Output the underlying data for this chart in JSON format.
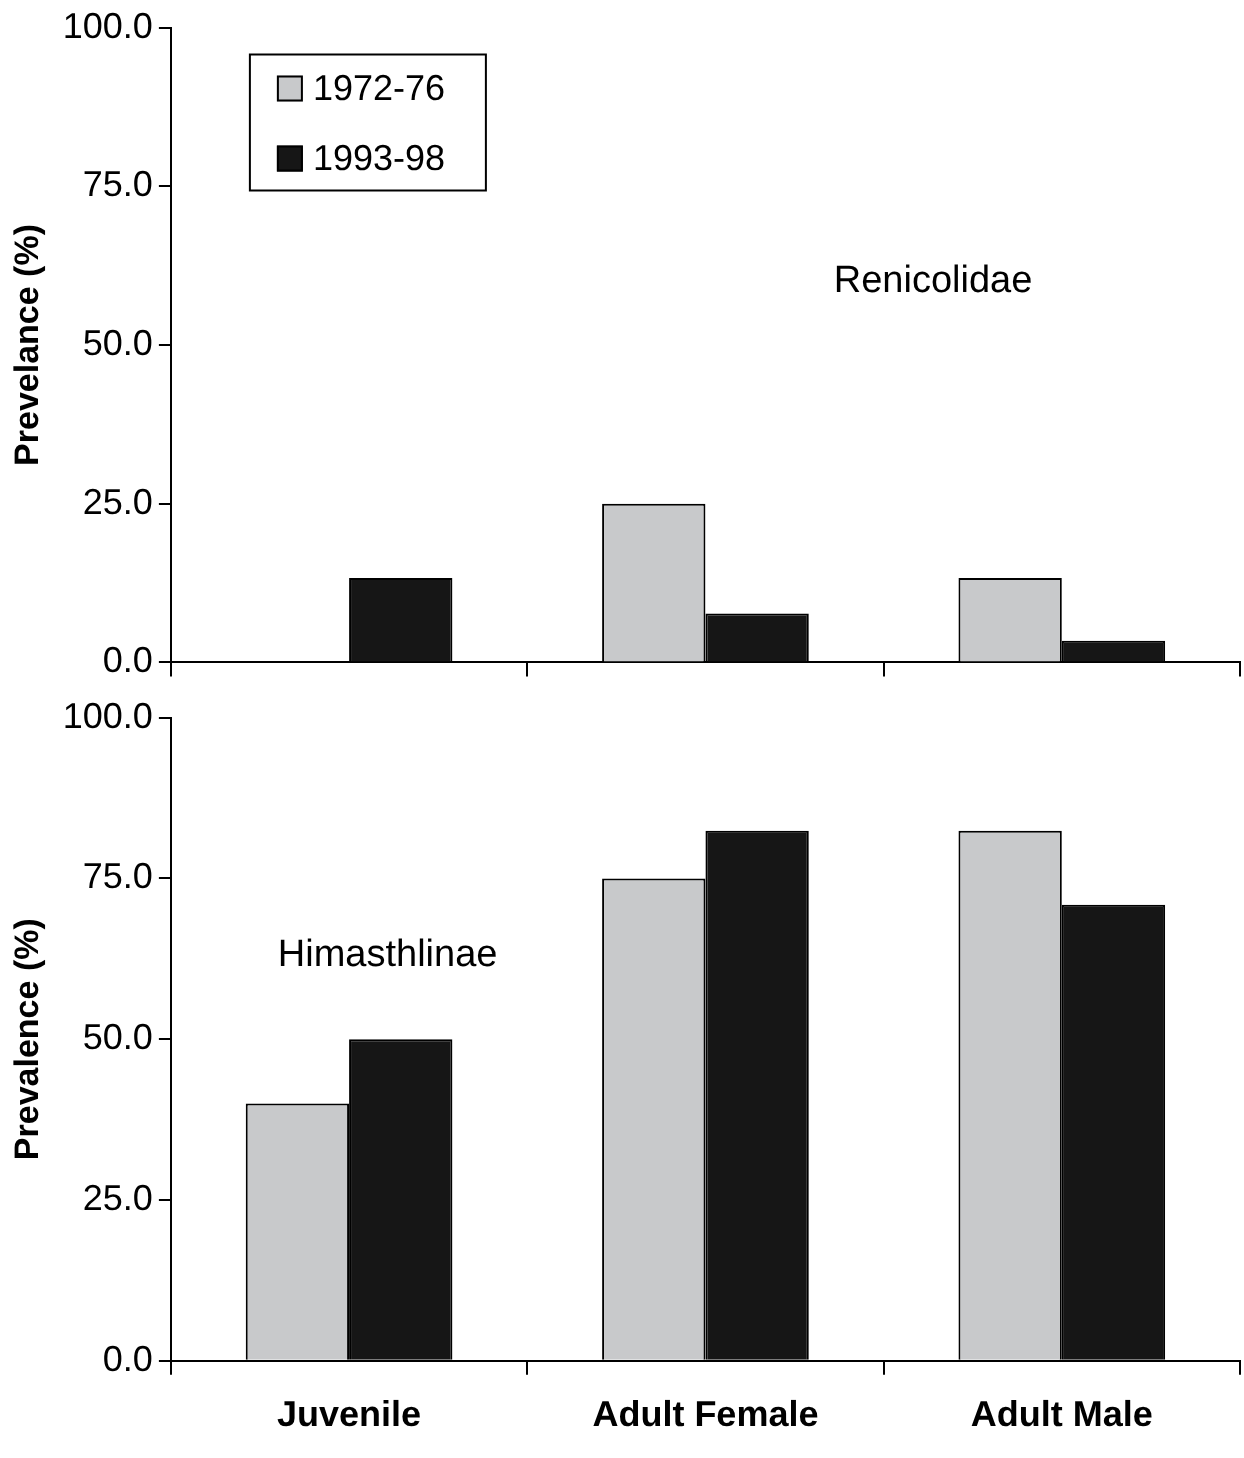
{
  "chart_data": [
    {
      "type": "bar",
      "ylabel": "Prevelance (%)",
      "categories": [
        null,
        null,
        null
      ],
      "series": [
        {
          "name": "1972-76",
          "color": "#c8c9cb",
          "values": [
            0,
            25,
            13.3
          ]
        },
        {
          "name": "1993-98",
          "color": "#161616",
          "values": [
            13.3,
            7.7,
            3.4
          ]
        }
      ],
      "ylim": [
        0,
        100
      ],
      "yticks": [
        {
          "value": 0,
          "label": "0.0"
        },
        {
          "value": 25,
          "label": "25.0"
        },
        {
          "value": 50,
          "label": "50.0"
        },
        {
          "value": 75,
          "label": "75.0"
        },
        {
          "value": 100,
          "label": "100.0"
        }
      ],
      "annotations": [
        "Renicolidae"
      ],
      "legend": "top left",
      "grid": false,
      "tick_labels": "y"
    },
    {
      "type": "bar",
      "ylabel": "Prevalence (%)",
      "categories": [
        "Juvenile",
        "Adult Female",
        "Adult Male"
      ],
      "series": [
        {
          "name": "1972-76",
          "color": "#c8c9cb",
          "values": [
            40,
            75,
            82.4
          ]
        },
        {
          "name": "1993-98",
          "color": "#161616",
          "values": [
            50,
            82.4,
            70.9
          ]
        }
      ],
      "ylim": [
        0,
        100
      ],
      "yticks": [
        {
          "value": 0,
          "label": "0.0"
        },
        {
          "value": 25,
          "label": "25.0"
        },
        {
          "value": 50,
          "label": "50.0"
        },
        {
          "value": 75,
          "label": "75.0"
        },
        {
          "value": 100,
          "label": "100.0"
        }
      ],
      "annotations": [
        "Himasthlinae"
      ],
      "legend": false,
      "grid": false
    }
  ]
}
